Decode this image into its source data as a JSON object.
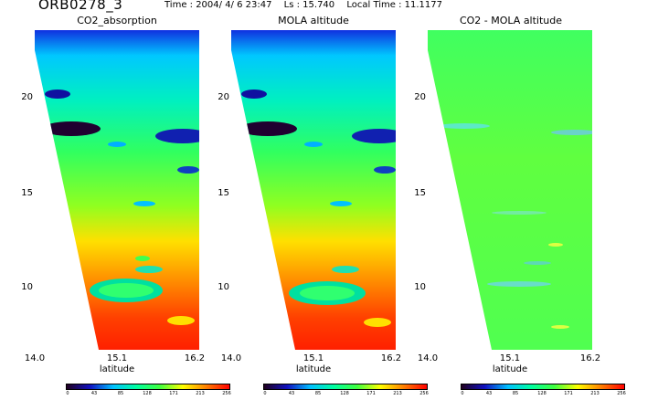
{
  "header": {
    "orbit": "ORB0278_3",
    "time": "Time : 2004/ 4/ 6 23:47",
    "ls": "Ls : 15.740",
    "local_time": "Local Time : 11.1177"
  },
  "panels": [
    {
      "title": "CO2_absorption",
      "xlabel": "latitude"
    },
    {
      "title": "MOLA altitude",
      "xlabel": "latitude"
    },
    {
      "title": "CO2 - MOLA altitude",
      "xlabel": "latitude"
    }
  ],
  "y_ticks": [
    "20",
    "15",
    "10"
  ],
  "x_ticks": [
    "14.0",
    "15.1",
    "16.2"
  ],
  "colorbar_ticks": [
    "0",
    "43",
    "85",
    "128",
    "171",
    "213",
    "256"
  ],
  "colors": {
    "palette": [
      "#200020",
      "#1010c0",
      "#00c0ff",
      "#00ffa0",
      "#40ff40",
      "#ffff00",
      "#ff8000",
      "#ff0000"
    ]
  }
}
